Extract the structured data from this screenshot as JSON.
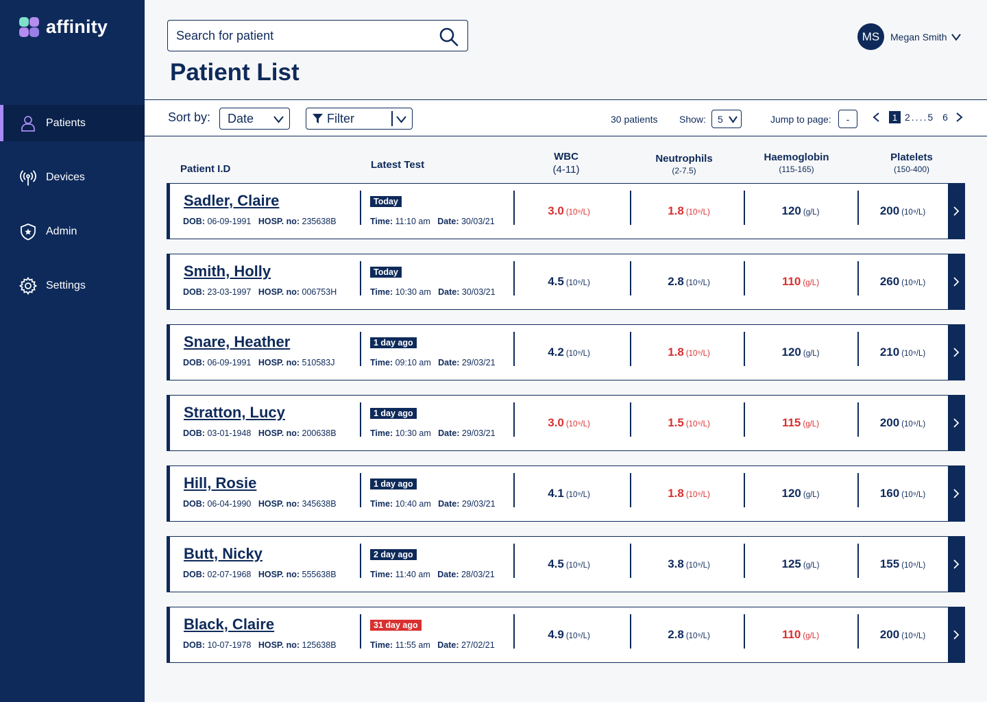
{
  "brand": {
    "name": "affinity"
  },
  "sidebar": {
    "items": [
      {
        "label": "Patients",
        "icon": "user-icon",
        "active": true
      },
      {
        "label": "Devices",
        "icon": "antenna-icon",
        "active": false
      },
      {
        "label": "Admin",
        "icon": "shield-star-icon",
        "active": false
      },
      {
        "label": "Settings",
        "icon": "gear-icon",
        "active": false
      }
    ]
  },
  "search": {
    "placeholder": "Search for patient"
  },
  "page": {
    "title": "Patient List"
  },
  "user": {
    "initials": "MS",
    "name": "Megan Smith"
  },
  "toolbar": {
    "sort_label": "Sort by:",
    "sort_value": "Date",
    "filter_label": "Filter",
    "count": "30 patients",
    "show_label": "Show:",
    "show_value": "5",
    "jump_label": "Jump to page:",
    "jump_value": "-",
    "pager": {
      "current": "1",
      "p2": "2",
      "dots": "....",
      "p5": "5",
      "p6": "6"
    }
  },
  "columns": {
    "patient_id": "Patient I.D",
    "latest_test": "Latest Test",
    "wbc": {
      "label": "WBC",
      "range": "(4-11)"
    },
    "neutrophils": {
      "label": "Neutrophils",
      "range": "(2-7.5)"
    },
    "haemoglobin": {
      "label": "Haemoglobin",
      "range": "(115-165)"
    },
    "platelets": {
      "label": "Platelets",
      "range": "(150-400)"
    }
  },
  "labels": {
    "dob": "DOB:",
    "hosp": "HOSP. no:",
    "time": "Time:",
    "date": "Date:",
    "unit_cells": "(10⁹/L)",
    "unit_gl": "(g/L)"
  },
  "colors": {
    "navy": "#0e2a5a",
    "alert_red": "#d93030",
    "accent_purple": "#a98bf5"
  },
  "patients": [
    {
      "name": "Sadler, Claire",
      "dob": "06-09-1991",
      "hosp": "235638B",
      "badge": "Today",
      "badge_alert": false,
      "time": "11:10 am",
      "date": "30/03/21",
      "wbc": "3.0",
      "wbc_red": true,
      "neut": "1.8",
      "neut_red": true,
      "hb": "120",
      "hb_red": false,
      "plt": "200",
      "plt_red": false
    },
    {
      "name": "Smith, Holly",
      "dob": "23-03-1997",
      "hosp": "006753H",
      "badge": "Today",
      "badge_alert": false,
      "time": "10:30 am",
      "date": "30/03/21",
      "wbc": "4.5",
      "wbc_red": false,
      "neut": "2.8",
      "neut_red": false,
      "hb": "110",
      "hb_red": true,
      "plt": "260",
      "plt_red": false
    },
    {
      "name": "Snare, Heather",
      "dob": "06-09-1991",
      "hosp": "510583J",
      "badge": "1 day ago",
      "badge_alert": false,
      "time": "09:10 am",
      "date": "29/03/21",
      "wbc": "4.2",
      "wbc_red": false,
      "neut": "1.8",
      "neut_red": true,
      "hb": "120",
      "hb_red": false,
      "plt": "210",
      "plt_red": false
    },
    {
      "name": "Stratton, Lucy",
      "dob": "03-01-1948",
      "hosp": "200638B",
      "badge": "1 day ago",
      "badge_alert": false,
      "time": "10:30 am",
      "date": "29/03/21",
      "wbc": "3.0",
      "wbc_red": true,
      "neut": "1.5",
      "neut_red": true,
      "hb": "115",
      "hb_red": true,
      "plt": "200",
      "plt_red": false
    },
    {
      "name": "Hill, Rosie",
      "dob": "06-04-1990",
      "hosp": "345638B",
      "badge": "1 day ago",
      "badge_alert": false,
      "time": "10:40 am",
      "date": "29/03/21",
      "wbc": "4.1",
      "wbc_red": false,
      "neut": "1.8",
      "neut_red": true,
      "hb": "120",
      "hb_red": false,
      "plt": "160",
      "plt_red": false
    },
    {
      "name": "Butt, Nicky",
      "dob": "02-07-1968",
      "hosp": "555638B",
      "badge": "2 day ago",
      "badge_alert": false,
      "time": "11:40 am",
      "date": "28/03/21",
      "wbc": "4.5",
      "wbc_red": false,
      "neut": "3.8",
      "neut_red": false,
      "hb": "125",
      "hb_red": false,
      "plt": "155",
      "plt_red": false
    },
    {
      "name": "Black, Claire",
      "dob": "10-07-1978",
      "hosp": "125638B",
      "badge": "31 day ago",
      "badge_alert": true,
      "time": "11:55 am",
      "date": "27/02/21",
      "wbc": "4.9",
      "wbc_red": false,
      "neut": "2.8",
      "neut_red": false,
      "hb": "110",
      "hb_red": true,
      "plt": "200",
      "plt_red": false
    }
  ]
}
